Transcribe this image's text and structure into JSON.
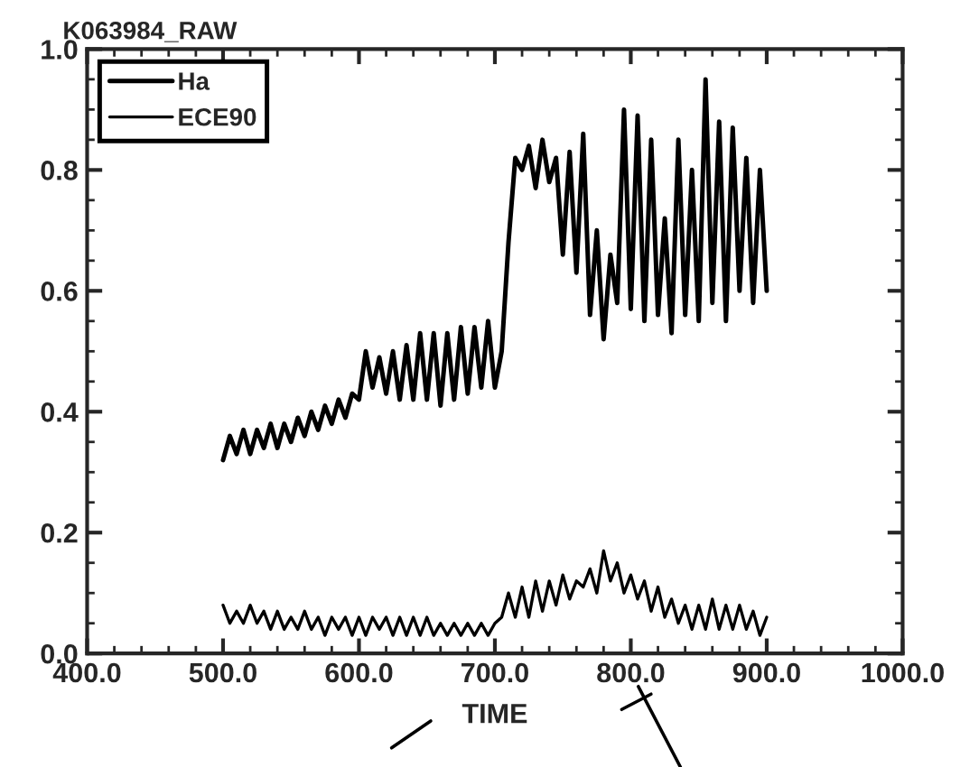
{
  "chart_data": {
    "type": "line",
    "title": "K063984_RAW",
    "xlabel": "TIME",
    "xlim": [
      400,
      1000
    ],
    "ylim": [
      0,
      1.0
    ],
    "xticks": [
      {
        "value": 400,
        "label": "400.0"
      },
      {
        "value": 500,
        "label": "500.0"
      },
      {
        "value": 600,
        "label": "600.0"
      },
      {
        "value": 700,
        "label": "700.0"
      },
      {
        "value": 800,
        "label": "800.0"
      },
      {
        "value": 900,
        "label": "900.0"
      },
      {
        "value": 1000,
        "label": "1000.0"
      }
    ],
    "yticks": [
      {
        "value": 0,
        "label": "0.0"
      },
      {
        "value": 0.2,
        "label": "0.2"
      },
      {
        "value": 0.4,
        "label": "0.4"
      },
      {
        "value": 0.6,
        "label": "0.6"
      },
      {
        "value": 0.8,
        "label": "0.8"
      },
      {
        "value": 1.0,
        "label": "1.0"
      }
    ],
    "grid": false,
    "legend": "top left",
    "marker": "none",
    "line_style": "solid",
    "series": [
      {
        "name": "Ha",
        "color": "#000000",
        "x": [
          500,
          505,
          510,
          515,
          520,
          525,
          530,
          535,
          540,
          545,
          550,
          555,
          560,
          565,
          570,
          575,
          580,
          585,
          590,
          595,
          600,
          605,
          610,
          615,
          620,
          625,
          630,
          635,
          640,
          645,
          650,
          655,
          660,
          665,
          670,
          675,
          680,
          685,
          690,
          695,
          700,
          705,
          710,
          715,
          720,
          725,
          730,
          735,
          740,
          745,
          750,
          755,
          760,
          765,
          770,
          775,
          780,
          785,
          790,
          795,
          800,
          805,
          810,
          815,
          820,
          825,
          830,
          835,
          840,
          845,
          850,
          855,
          860,
          865,
          870,
          875,
          880,
          885,
          890,
          895,
          900
        ],
        "values": [
          0.32,
          0.36,
          0.33,
          0.37,
          0.33,
          0.37,
          0.34,
          0.38,
          0.34,
          0.38,
          0.35,
          0.39,
          0.36,
          0.4,
          0.37,
          0.41,
          0.38,
          0.42,
          0.39,
          0.43,
          0.42,
          0.5,
          0.44,
          0.49,
          0.43,
          0.5,
          0.42,
          0.51,
          0.42,
          0.53,
          0.42,
          0.53,
          0.41,
          0.53,
          0.42,
          0.54,
          0.43,
          0.54,
          0.44,
          0.55,
          0.44,
          0.5,
          0.68,
          0.82,
          0.8,
          0.84,
          0.77,
          0.85,
          0.78,
          0.82,
          0.66,
          0.83,
          0.63,
          0.86,
          0.56,
          0.7,
          0.52,
          0.66,
          0.58,
          0.9,
          0.57,
          0.89,
          0.55,
          0.85,
          0.56,
          0.72,
          0.53,
          0.85,
          0.56,
          0.8,
          0.55,
          0.95,
          0.58,
          0.88,
          0.55,
          0.87,
          0.6,
          0.82,
          0.58,
          0.8,
          0.6
        ]
      },
      {
        "name": "ECE90",
        "color": "#000000",
        "x": [
          500,
          505,
          510,
          515,
          520,
          525,
          530,
          535,
          540,
          545,
          550,
          555,
          560,
          565,
          570,
          575,
          580,
          585,
          590,
          595,
          600,
          605,
          610,
          615,
          620,
          625,
          630,
          635,
          640,
          645,
          650,
          655,
          660,
          665,
          670,
          675,
          680,
          685,
          690,
          695,
          700,
          705,
          710,
          715,
          720,
          725,
          730,
          735,
          740,
          745,
          750,
          755,
          760,
          765,
          770,
          775,
          780,
          785,
          790,
          795,
          800,
          805,
          810,
          815,
          820,
          825,
          830,
          835,
          840,
          845,
          850,
          855,
          860,
          865,
          870,
          875,
          880,
          885,
          890,
          895,
          900
        ],
        "values": [
          0.08,
          0.05,
          0.07,
          0.05,
          0.08,
          0.05,
          0.07,
          0.04,
          0.07,
          0.04,
          0.06,
          0.04,
          0.07,
          0.04,
          0.06,
          0.03,
          0.06,
          0.04,
          0.06,
          0.03,
          0.06,
          0.03,
          0.06,
          0.04,
          0.06,
          0.03,
          0.06,
          0.03,
          0.06,
          0.03,
          0.06,
          0.03,
          0.05,
          0.03,
          0.05,
          0.03,
          0.05,
          0.03,
          0.05,
          0.03,
          0.05,
          0.06,
          0.1,
          0.06,
          0.11,
          0.06,
          0.12,
          0.07,
          0.12,
          0.08,
          0.13,
          0.09,
          0.12,
          0.11,
          0.14,
          0.1,
          0.17,
          0.12,
          0.15,
          0.1,
          0.13,
          0.09,
          0.12,
          0.07,
          0.11,
          0.06,
          0.09,
          0.05,
          0.08,
          0.04,
          0.08,
          0.04,
          0.09,
          0.04,
          0.08,
          0.04,
          0.08,
          0.04,
          0.07,
          0.03,
          0.06
        ]
      }
    ]
  }
}
